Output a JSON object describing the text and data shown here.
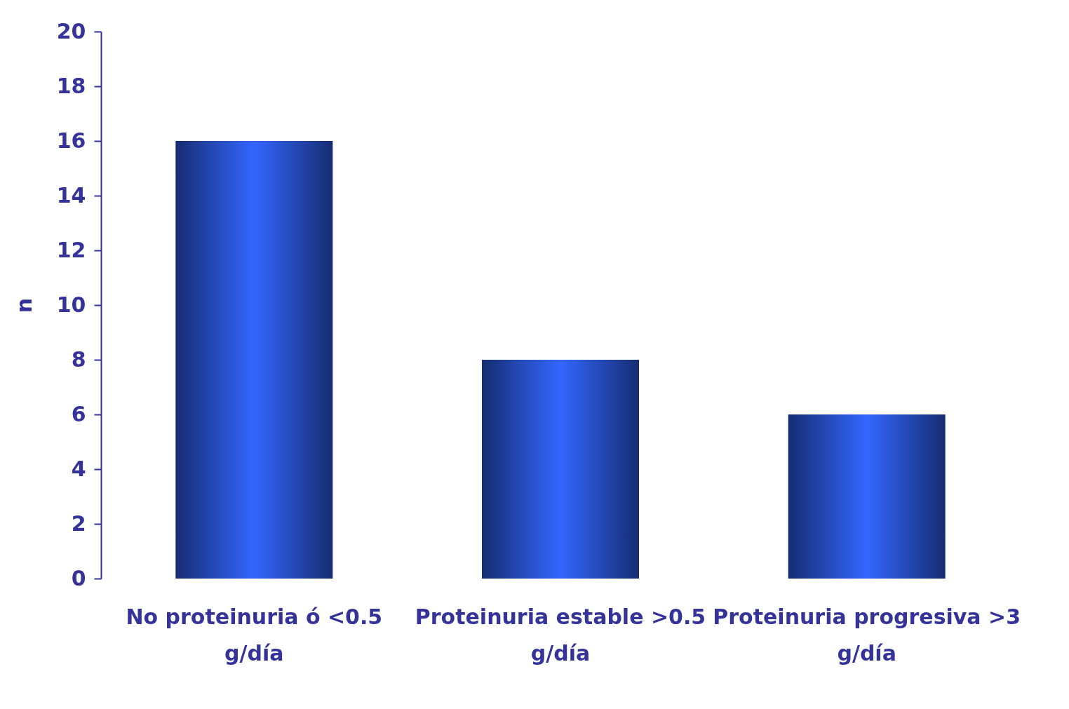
{
  "chart_data": {
    "type": "bar",
    "ylabel": "n",
    "categories": [
      "No proteinuria ó <0.5 g/día",
      "Proteinuria estable >0.5 g/día",
      "Proteinuria progresiva >3 g/día"
    ],
    "values": [
      16,
      8,
      6
    ],
    "color": "#3366ff",
    "ylim": [
      0,
      20
    ],
    "yticks": [
      0,
      2,
      4,
      6,
      8,
      10,
      12,
      14,
      16,
      18,
      20
    ],
    "grid": false
  }
}
